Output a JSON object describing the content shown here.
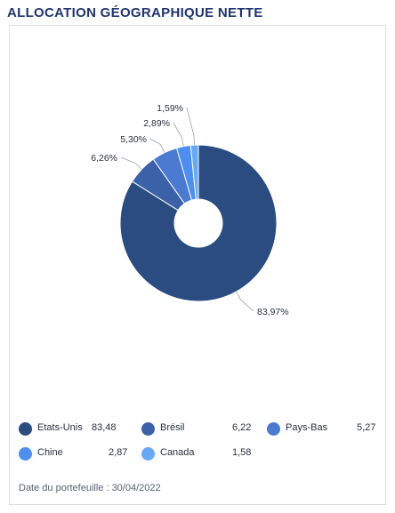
{
  "title": "ALLOCATION GÉOGRAPHIQUE NETTE",
  "chart_data": {
    "type": "pie",
    "style": "donut",
    "slices": [
      {
        "label": "Etats-Unis",
        "value": 83.97,
        "display": "83,97%",
        "color": "#2b4c81"
      },
      {
        "label": "Brésil",
        "value": 6.26,
        "display": "6,26%",
        "color": "#3b62a8"
      },
      {
        "label": "Pays-Bas",
        "value": 5.3,
        "display": "5,30%",
        "color": "#4a7bd0"
      },
      {
        "label": "Chine",
        "value": 2.89,
        "display": "2,89%",
        "color": "#4d8ef0"
      },
      {
        "label": "Canada",
        "value": 1.59,
        "display": "1,59%",
        "color": "#66a9f5"
      }
    ]
  },
  "legend": [
    {
      "label": "Etats-Unis",
      "value": "83,48",
      "color": "#2b4c81"
    },
    {
      "label": "Brésil",
      "value": "6,22",
      "color": "#3b62a8"
    },
    {
      "label": "Pays-Bas",
      "value": "5,27",
      "color": "#4a7bd0"
    },
    {
      "label": "Chine",
      "value": "2,87",
      "color": "#4d8ef0"
    },
    {
      "label": "Canada",
      "value": "1,58",
      "color": "#66a9f5"
    }
  ],
  "footer": {
    "date_label": "Date du portefeuille : 30/04/2022"
  }
}
